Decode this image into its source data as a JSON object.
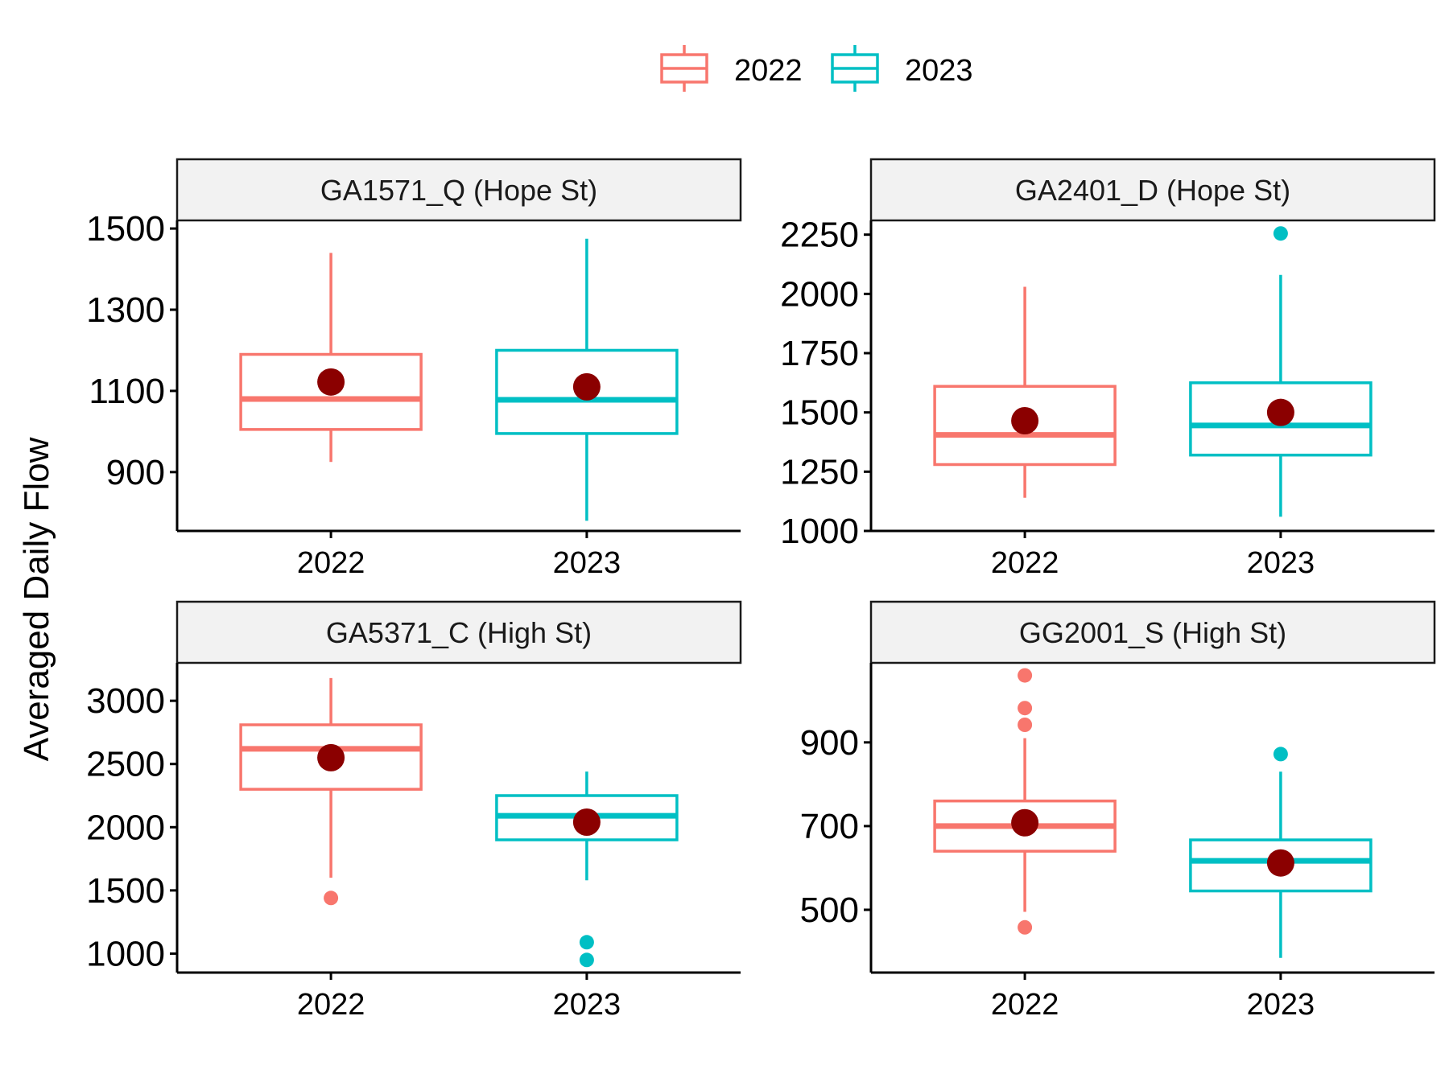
{
  "chart_data": {
    "type": "box",
    "ylabel": "Averaged Daily Flow",
    "xlabel": "",
    "legend": {
      "placement": "top",
      "entries": [
        {
          "name": "2022",
          "color": "#F8766D"
        },
        {
          "name": "2023",
          "color": "#00BFC4"
        }
      ]
    },
    "mean_marker_color": "#8B0000",
    "grid": false,
    "panels": [
      {
        "title": "GA1571_Q (Hope St)",
        "ylim": [
          755,
          1520
        ],
        "yticks": [
          900,
          1100,
          1300,
          1500
        ],
        "categories": [
          "2022",
          "2023"
        ],
        "boxes": [
          {
            "category": "2022",
            "whisker_low": 925,
            "q1": 1005,
            "median": 1080,
            "q3": 1190,
            "whisker_high": 1440,
            "mean": 1122,
            "outliers": []
          },
          {
            "category": "2023",
            "whisker_low": 780,
            "q1": 995,
            "median": 1078,
            "q3": 1200,
            "whisker_high": 1475,
            "mean": 1110,
            "outliers": []
          }
        ]
      },
      {
        "title": "GA2401_D (Hope St)",
        "ylim": [
          1000,
          2310
        ],
        "yticks": [
          1000,
          1250,
          1500,
          1750,
          2000,
          2250
        ],
        "categories": [
          "2022",
          "2023"
        ],
        "boxes": [
          {
            "category": "2022",
            "whisker_low": 1140,
            "q1": 1280,
            "median": 1405,
            "q3": 1610,
            "whisker_high": 2030,
            "mean": 1465,
            "outliers": []
          },
          {
            "category": "2023",
            "whisker_low": 1060,
            "q1": 1320,
            "median": 1445,
            "q3": 1625,
            "whisker_high": 2080,
            "mean": 1500,
            "outliers": [
              2255
            ]
          }
        ]
      },
      {
        "title": "GA5371_C (High St)",
        "ylim": [
          850,
          3300
        ],
        "yticks": [
          1000,
          1500,
          2000,
          2500,
          3000
        ],
        "categories": [
          "2022",
          "2023"
        ],
        "boxes": [
          {
            "category": "2022",
            "whisker_low": 1600,
            "q1": 2300,
            "median": 2620,
            "q3": 2810,
            "whisker_high": 3180,
            "mean": 2550,
            "outliers": [
              1440
            ]
          },
          {
            "category": "2023",
            "whisker_low": 1580,
            "q1": 1900,
            "median": 2090,
            "q3": 2250,
            "whisker_high": 2440,
            "mean": 2040,
            "outliers": [
              1090,
              950
            ]
          }
        ]
      },
      {
        "title": "GG2001_S (High St)",
        "ylim": [
          350,
          1090
        ],
        "yticks": [
          500,
          700,
          900
        ],
        "categories": [
          "2022",
          "2023"
        ],
        "boxes": [
          {
            "category": "2022",
            "whisker_low": 495,
            "q1": 640,
            "median": 700,
            "q3": 760,
            "whisker_high": 910,
            "mean": 708,
            "outliers": [
              1060,
              982,
              942,
              458
            ]
          },
          {
            "category": "2023",
            "whisker_low": 385,
            "q1": 545,
            "median": 617,
            "q3": 667,
            "whisker_high": 830,
            "mean": 612,
            "outliers": [
              872
            ]
          }
        ]
      }
    ]
  }
}
